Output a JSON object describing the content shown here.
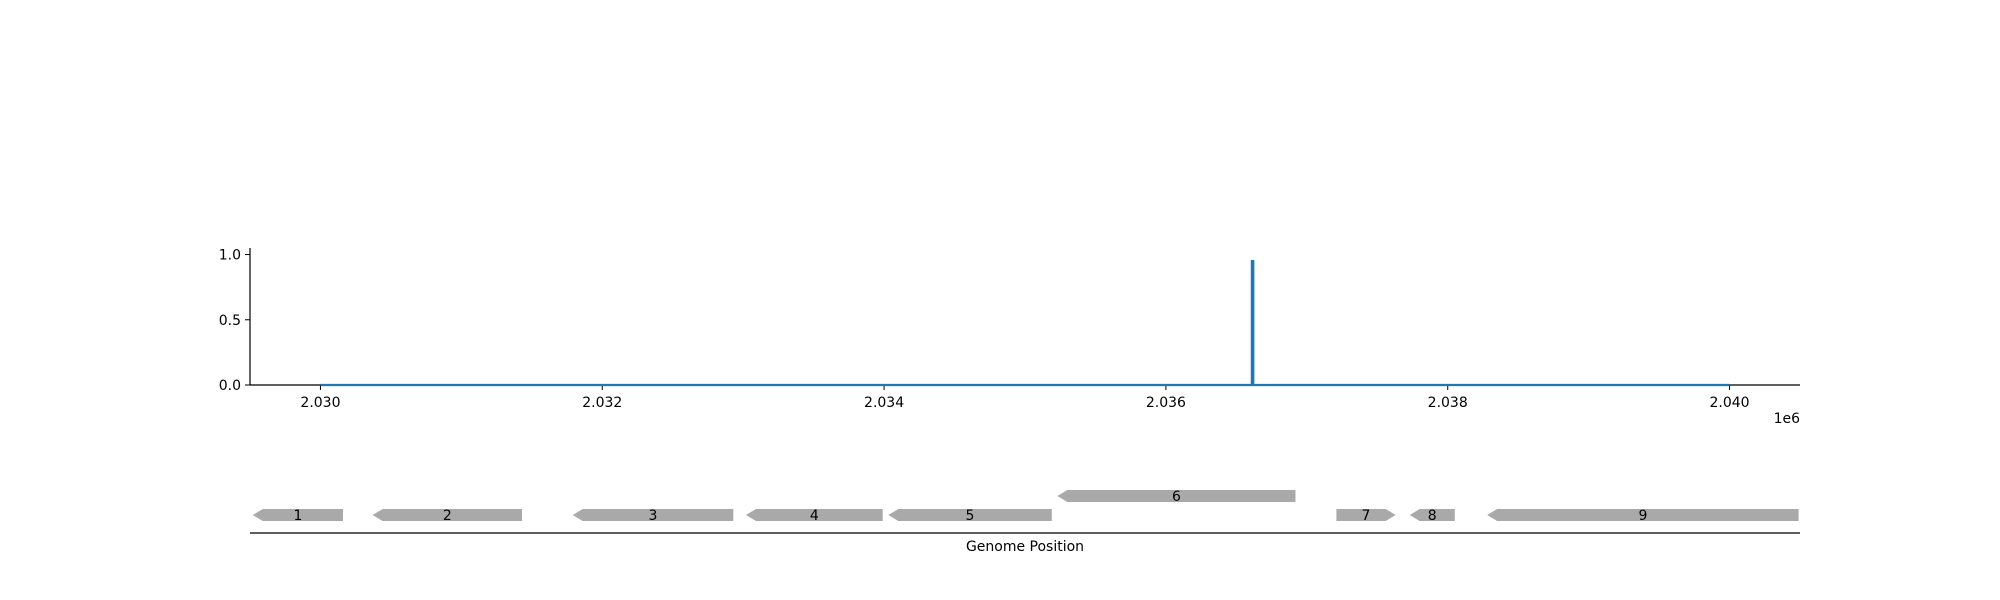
{
  "chart_data": {
    "type": "line",
    "title": "",
    "xlabel": "Genome Position",
    "ylabel": "",
    "x_multiplier_label": "1e6",
    "xlim": [
      2029500,
      2040500
    ],
    "ylim": [
      0,
      1.05
    ],
    "xticks": [
      {
        "value": 2030000,
        "label": "2.030"
      },
      {
        "value": 2032000,
        "label": "2.032"
      },
      {
        "value": 2034000,
        "label": "2.034"
      },
      {
        "value": 2036000,
        "label": "2.036"
      },
      {
        "value": 2038000,
        "label": "2.038"
      },
      {
        "value": 2040000,
        "label": "2.040"
      }
    ],
    "yticks": [
      {
        "value": 0.0,
        "label": "0.0"
      },
      {
        "value": 0.5,
        "label": "0.5"
      },
      {
        "value": 1.0,
        "label": "1.0"
      }
    ],
    "series": [
      {
        "color": "#1f77b4",
        "points": [
          {
            "x": 2030000,
            "y": 0
          },
          {
            "x": 2036610,
            "y": 0
          },
          {
            "x": 2036610,
            "y": 0.95
          },
          {
            "x": 2036620,
            "y": 0.95
          },
          {
            "x": 2036620,
            "y": 0
          },
          {
            "x": 2040000,
            "y": 0
          }
        ]
      }
    ],
    "grid": false,
    "genes": [
      {
        "label": "1",
        "start": 2029520,
        "end": 2030160,
        "strand": "-",
        "row": 0
      },
      {
        "label": "2",
        "start": 2030370,
        "end": 2031430,
        "strand": "-",
        "row": 0
      },
      {
        "label": "3",
        "start": 2031790,
        "end": 2032930,
        "strand": "-",
        "row": 0
      },
      {
        "label": "4",
        "start": 2033020,
        "end": 2033990,
        "strand": "-",
        "row": 0
      },
      {
        "label": "5",
        "start": 2034030,
        "end": 2035190,
        "strand": "-",
        "row": 0
      },
      {
        "label": "6",
        "start": 2035230,
        "end": 2036920,
        "strand": "-",
        "row": 1
      },
      {
        "label": "7",
        "start": 2037210,
        "end": 2037630,
        "strand": "+",
        "row": 0
      },
      {
        "label": "8",
        "start": 2037730,
        "end": 2038050,
        "strand": "-",
        "row": 0
      },
      {
        "label": "9",
        "start": 2038280,
        "end": 2040490,
        "strand": "-",
        "row": 0
      }
    ],
    "colors": {
      "line": "#1f77b4",
      "gene": "#a9a9a9",
      "axis": "#000000"
    }
  }
}
